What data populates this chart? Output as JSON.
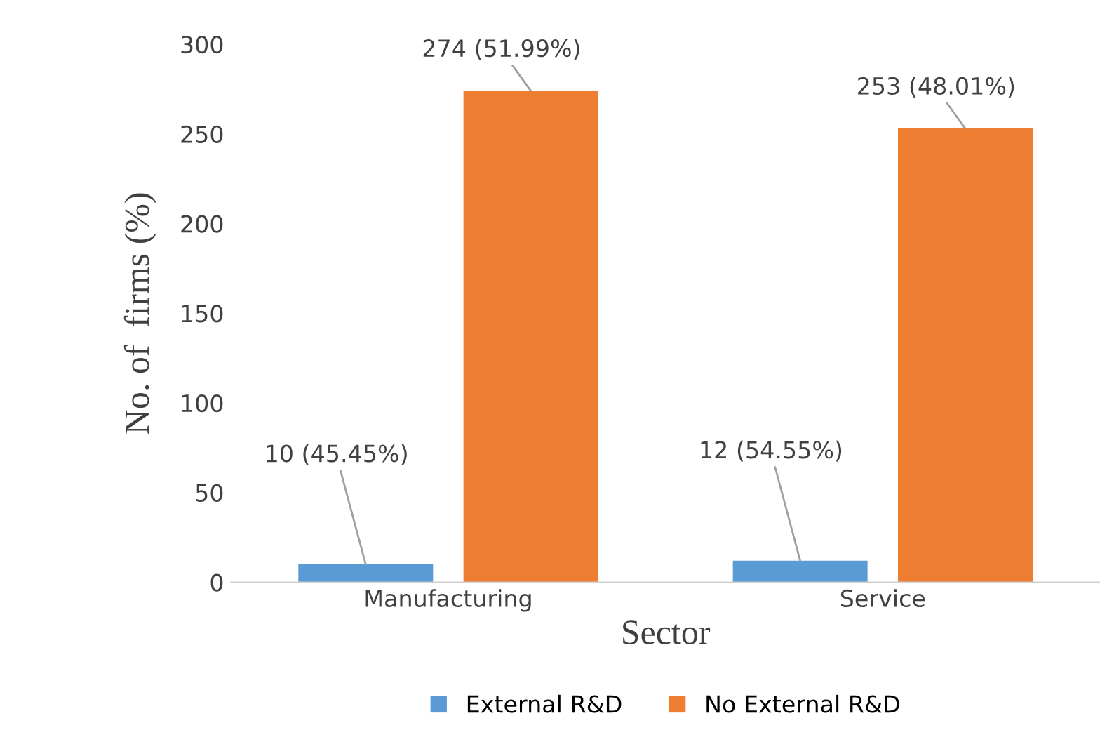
{
  "chart_data": {
    "type": "bar",
    "xlabel": "Sector",
    "ylabel": "No. of  firms (%)",
    "categories": [
      "Manufacturing",
      "Service"
    ],
    "series": [
      {
        "name": "External R&D",
        "color": "#5b9bd5",
        "values": [
          10,
          12
        ],
        "value_labels": [
          "10 (45.45%)",
          "12 (54.55%)"
        ]
      },
      {
        "name": "No External R&D",
        "color": "#ed7d31",
        "values": [
          274,
          253
        ],
        "value_labels": [
          "274 (51.99%)",
          "253 (48.01%)"
        ]
      }
    ],
    "ylim": [
      0,
      300
    ],
    "yticks": [
      0,
      50,
      100,
      150,
      200,
      250,
      300
    ],
    "grid": false,
    "legend": "bottom"
  }
}
